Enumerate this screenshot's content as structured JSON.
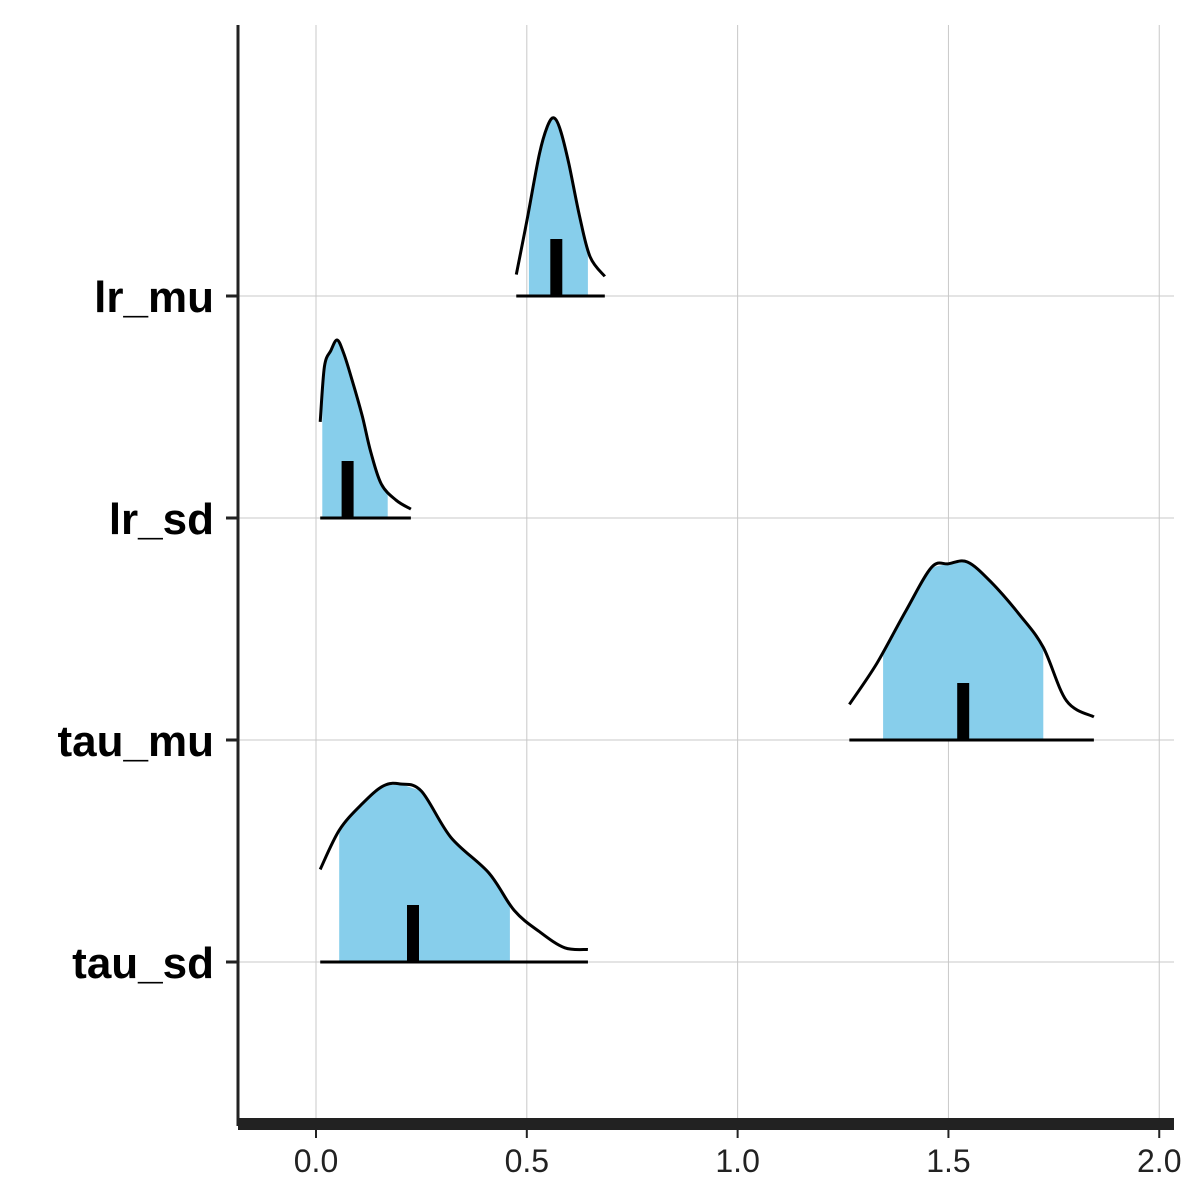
{
  "chart_data": {
    "type": "ridgeline",
    "title": "",
    "xlabel": "",
    "ylabel": "",
    "xlim": [
      -0.185,
      2.035
    ],
    "x_ticks": [
      "0.0",
      "0.5",
      "1.0",
      "1.5",
      "2.0"
    ],
    "x_tick_values": [
      0.0,
      0.5,
      1.0,
      1.5,
      2.0
    ],
    "grid": true,
    "legend": "none",
    "colors": {
      "fill": "#87CEEB",
      "line": "#000000",
      "median": "#000000",
      "grid": "#C8C8C8",
      "axis": "#222222"
    },
    "series": [
      {
        "name": "lr_mu",
        "outer_interval": [
          0.475,
          0.685
        ],
        "inner_interval": [
          0.505,
          0.645
        ],
        "median": 0.57,
        "density": [
          [
            0.475,
            0.12
          ],
          [
            0.5,
            0.42
          ],
          [
            0.53,
            0.8
          ],
          [
            0.55,
            0.96
          ],
          [
            0.565,
            1.0
          ],
          [
            0.58,
            0.93
          ],
          [
            0.6,
            0.74
          ],
          [
            0.625,
            0.45
          ],
          [
            0.65,
            0.22
          ],
          [
            0.685,
            0.11
          ]
        ]
      },
      {
        "name": "lr_sd",
        "outer_interval": [
          0.01,
          0.225
        ],
        "inner_interval": [
          0.015,
          0.17
        ],
        "median": 0.075,
        "density": [
          [
            0.01,
            0.54
          ],
          [
            0.02,
            0.85
          ],
          [
            0.035,
            0.94
          ],
          [
            0.05,
            1.0
          ],
          [
            0.065,
            0.93
          ],
          [
            0.085,
            0.78
          ],
          [
            0.11,
            0.57
          ],
          [
            0.13,
            0.37
          ],
          [
            0.155,
            0.19
          ],
          [
            0.19,
            0.1
          ],
          [
            0.225,
            0.05
          ]
        ]
      },
      {
        "name": "tau_mu",
        "outer_interval": [
          1.265,
          1.845
        ],
        "inner_interval": [
          1.345,
          1.725
        ],
        "median": 1.535,
        "density": [
          [
            1.265,
            0.2
          ],
          [
            1.33,
            0.43
          ],
          [
            1.4,
            0.73
          ],
          [
            1.46,
            0.97
          ],
          [
            1.5,
            0.99
          ],
          [
            1.545,
            1.0
          ],
          [
            1.6,
            0.89
          ],
          [
            1.67,
            0.7
          ],
          [
            1.725,
            0.52
          ],
          [
            1.78,
            0.22
          ],
          [
            1.845,
            0.13
          ]
        ]
      },
      {
        "name": "tau_sd",
        "outer_interval": [
          0.01,
          0.645
        ],
        "inner_interval": [
          0.055,
          0.46
        ],
        "median": 0.23,
        "density": [
          [
            0.01,
            0.52
          ],
          [
            0.055,
            0.74
          ],
          [
            0.11,
            0.89
          ],
          [
            0.16,
            0.99
          ],
          [
            0.2,
            1.0
          ],
          [
            0.25,
            0.96
          ],
          [
            0.32,
            0.7
          ],
          [
            0.41,
            0.5
          ],
          [
            0.47,
            0.29
          ],
          [
            0.53,
            0.17
          ],
          [
            0.59,
            0.08
          ],
          [
            0.645,
            0.07
          ]
        ]
      }
    ]
  }
}
